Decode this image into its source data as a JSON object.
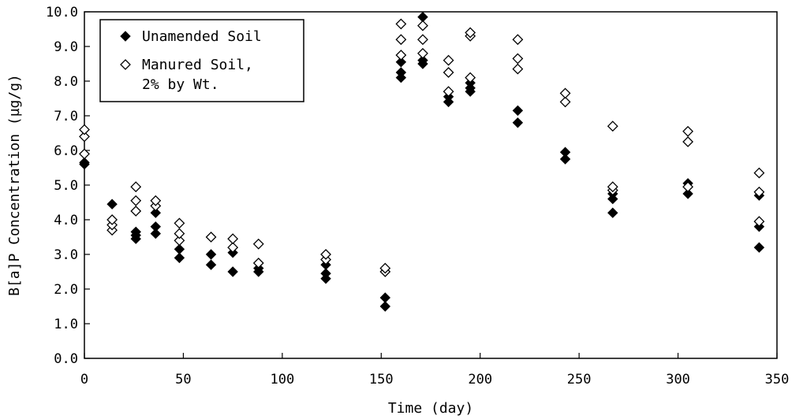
{
  "chart_data": {
    "type": "scatter",
    "xlabel": "Time (day)",
    "ylabel": "B[a]P Concentration (µg/g)",
    "xlim": [
      0,
      350
    ],
    "ylim": [
      0,
      10
    ],
    "x_ticks": [
      "0",
      "50",
      "100",
      "150",
      "200",
      "250",
      "300",
      "350"
    ],
    "y_ticks": [
      "0.0",
      "1.0",
      "2.0",
      "3.0",
      "4.0",
      "5.0",
      "6.0",
      "7.0",
      "8.0",
      "9.0",
      "10.0"
    ],
    "grid": false,
    "legend_position": "top-left",
    "series": [
      {
        "name": "Unamended Soil",
        "marker": "filled-diamond",
        "color": "#000000",
        "points": [
          [
            0,
            5.6
          ],
          [
            0,
            5.65
          ],
          [
            14,
            4.45
          ],
          [
            26,
            3.45
          ],
          [
            26,
            3.55
          ],
          [
            26,
            3.65
          ],
          [
            36,
            3.6
          ],
          [
            36,
            3.8
          ],
          [
            36,
            4.2
          ],
          [
            48,
            2.9
          ],
          [
            48,
            3.15
          ],
          [
            64,
            2.7
          ],
          [
            64,
            3.0
          ],
          [
            75,
            2.5
          ],
          [
            75,
            3.05
          ],
          [
            88,
            2.5
          ],
          [
            88,
            2.6
          ],
          [
            122,
            2.3
          ],
          [
            122,
            2.45
          ],
          [
            122,
            2.7
          ],
          [
            152,
            1.5
          ],
          [
            152,
            1.75
          ],
          [
            160,
            8.1
          ],
          [
            160,
            8.25
          ],
          [
            160,
            8.55
          ],
          [
            171,
            8.5
          ],
          [
            171,
            8.6
          ],
          [
            171,
            9.85
          ],
          [
            184,
            7.4
          ],
          [
            184,
            7.55
          ],
          [
            195,
            7.7
          ],
          [
            195,
            7.8
          ],
          [
            195,
            7.95
          ],
          [
            219,
            6.8
          ],
          [
            219,
            7.15
          ],
          [
            243,
            5.75
          ],
          [
            243,
            5.95
          ],
          [
            267,
            4.2
          ],
          [
            267,
            4.6
          ],
          [
            267,
            4.75
          ],
          [
            305,
            4.75
          ],
          [
            305,
            5.05
          ],
          [
            341,
            3.2
          ],
          [
            341,
            3.8
          ],
          [
            341,
            4.7
          ]
        ]
      },
      {
        "name": "Manured Soil, 2% by Wt.",
        "legend_lines": [
          "Manured Soil,",
          "2% by Wt."
        ],
        "marker": "open-diamond",
        "color": "#000000",
        "points": [
          [
            0,
            5.9
          ],
          [
            0,
            6.4
          ],
          [
            0,
            6.6
          ],
          [
            14,
            3.7
          ],
          [
            14,
            3.85
          ],
          [
            14,
            4.0
          ],
          [
            26,
            4.25
          ],
          [
            26,
            4.55
          ],
          [
            26,
            4.95
          ],
          [
            36,
            4.4
          ],
          [
            36,
            4.55
          ],
          [
            48,
            3.4
          ],
          [
            48,
            3.6
          ],
          [
            48,
            3.9
          ],
          [
            64,
            3.5
          ],
          [
            75,
            3.2
          ],
          [
            75,
            3.45
          ],
          [
            88,
            2.75
          ],
          [
            88,
            3.3
          ],
          [
            122,
            2.85
          ],
          [
            122,
            3.0
          ],
          [
            152,
            2.5
          ],
          [
            152,
            2.6
          ],
          [
            160,
            8.75
          ],
          [
            160,
            9.2
          ],
          [
            160,
            9.65
          ],
          [
            171,
            8.8
          ],
          [
            171,
            9.2
          ],
          [
            171,
            9.6
          ],
          [
            184,
            7.7
          ],
          [
            184,
            8.25
          ],
          [
            184,
            8.6
          ],
          [
            195,
            8.1
          ],
          [
            195,
            9.3
          ],
          [
            195,
            9.4
          ],
          [
            219,
            8.35
          ],
          [
            219,
            8.65
          ],
          [
            219,
            9.2
          ],
          [
            243,
            7.4
          ],
          [
            243,
            7.65
          ],
          [
            267,
            4.85
          ],
          [
            267,
            4.95
          ],
          [
            267,
            6.7
          ],
          [
            305,
            4.95
          ],
          [
            305,
            6.25
          ],
          [
            305,
            6.55
          ],
          [
            341,
            3.95
          ],
          [
            341,
            4.8
          ],
          [
            341,
            5.35
          ]
        ]
      }
    ]
  }
}
